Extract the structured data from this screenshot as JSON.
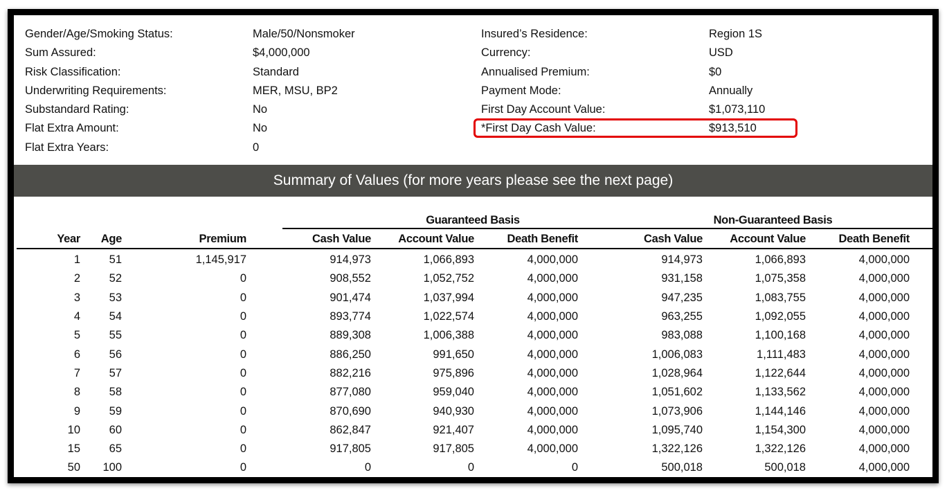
{
  "info_left": [
    {
      "label": "Gender/Age/Smoking Status:",
      "value": "Male/50/Nonsmoker"
    },
    {
      "label": "Sum Assured:",
      "value": "$4,000,000"
    },
    {
      "label": "Risk Classification:",
      "value": "Standard"
    },
    {
      "label": "Underwriting Requirements:",
      "value": "MER, MSU, BP2"
    },
    {
      "label": "Substandard Rating:",
      "value": "No"
    },
    {
      "label": "Flat Extra Amount:",
      "value": "No"
    },
    {
      "label": "Flat Extra Years:",
      "value": "0"
    }
  ],
  "info_right": [
    {
      "label": "Insured’s Residence:",
      "value": "Region 1S"
    },
    {
      "label": "Currency:",
      "value": "USD"
    },
    {
      "label": "Annualised Premium:",
      "value": "$0"
    },
    {
      "label": "Payment Mode:",
      "value": "Annually"
    },
    {
      "label": "First Day Account Value:",
      "value": "$1,073,110"
    },
    {
      "label": "*First Day Cash Value:",
      "value": "$913,510"
    }
  ],
  "highlight_color": "#e30000",
  "banner": {
    "title": "Summary of Values (for more years please see the next page)",
    "color": "#4d4d49"
  },
  "table": {
    "group_headers": {
      "guaranteed": "Guaranteed Basis",
      "non_guaranteed": "Non-Guaranteed Basis"
    },
    "columns": [
      "Year",
      "Age",
      "Premium",
      "Cash Value",
      "Account Value",
      "Death Benefit",
      "Cash Value",
      "Account Value",
      "Death Benefit"
    ],
    "rows": [
      [
        "1",
        "51",
        "1,145,917",
        "914,973",
        "1,066,893",
        "4,000,000",
        "914,973",
        "1,066,893",
        "4,000,000"
      ],
      [
        "2",
        "52",
        "0",
        "908,552",
        "1,052,752",
        "4,000,000",
        "931,158",
        "1,075,358",
        "4,000,000"
      ],
      [
        "3",
        "53",
        "0",
        "901,474",
        "1,037,994",
        "4,000,000",
        "947,235",
        "1,083,755",
        "4,000,000"
      ],
      [
        "4",
        "54",
        "0",
        "893,774",
        "1,022,574",
        "4,000,000",
        "963,255",
        "1,092,055",
        "4,000,000"
      ],
      [
        "5",
        "55",
        "0",
        "889,308",
        "1,006,388",
        "4,000,000",
        "983,088",
        "1,100,168",
        "4,000,000"
      ],
      [
        "6",
        "56",
        "0",
        "886,250",
        "991,650",
        "4,000,000",
        "1,006,083",
        "1,111,483",
        "4,000,000"
      ],
      [
        "7",
        "57",
        "0",
        "882,216",
        "975,896",
        "4,000,000",
        "1,028,964",
        "1,122,644",
        "4,000,000"
      ],
      [
        "8",
        "58",
        "0",
        "877,080",
        "959,040",
        "4,000,000",
        "1,051,602",
        "1,133,562",
        "4,000,000"
      ],
      [
        "9",
        "59",
        "0",
        "870,690",
        "940,930",
        "4,000,000",
        "1,073,906",
        "1,144,146",
        "4,000,000"
      ],
      [
        "10",
        "60",
        "0",
        "862,847",
        "921,407",
        "4,000,000",
        "1,095,740",
        "1,154,300",
        "4,000,000"
      ],
      [
        "15",
        "65",
        "0",
        "917,805",
        "917,805",
        "4,000,000",
        "1,322,126",
        "1,322,126",
        "4,000,000"
      ],
      [
        "50",
        "100",
        "0",
        "0",
        "0",
        "0",
        "500,018",
        "500,018",
        "4,000,000"
      ]
    ]
  }
}
